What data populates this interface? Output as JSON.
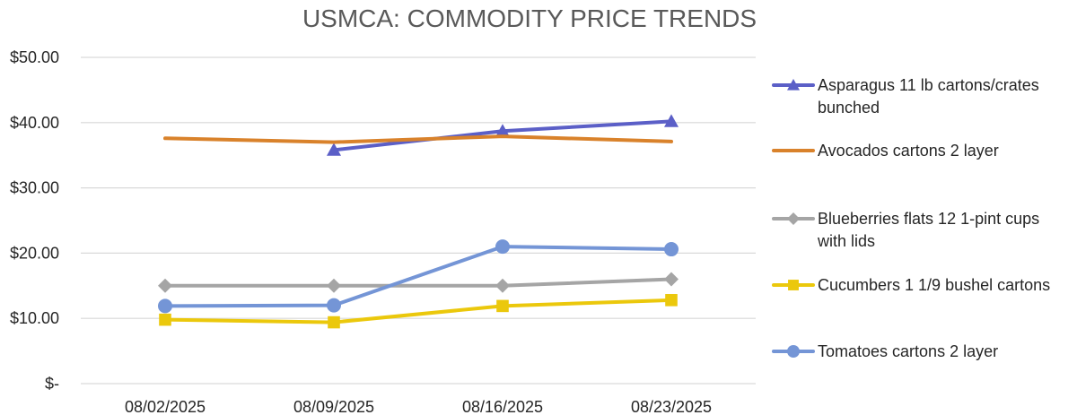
{
  "chart_data": {
    "type": "line",
    "title": "USMCA: COMMODITY PRICE TRENDS",
    "xlabel": "",
    "ylabel": "",
    "categories": [
      "08/02/2025",
      "08/09/2025",
      "08/16/2025",
      "08/23/2025"
    ],
    "ylim": [
      0,
      50
    ],
    "yticks": [
      {
        "value": 0,
        "label": "$-"
      },
      {
        "value": 10,
        "label": "$10.00"
      },
      {
        "value": 20,
        "label": "$20.00"
      },
      {
        "value": 30,
        "label": "$30.00"
      },
      {
        "value": 40,
        "label": "$40.00"
      },
      {
        "value": 50,
        "label": "$50.00"
      }
    ],
    "grid": true,
    "legend_position": "right",
    "series": [
      {
        "name": "Asparagus 11 lb cartons/crates bunched",
        "legend_lines": [
          "Asparagus 11 lb cartons/crates",
          "bunched"
        ],
        "color": "#5B5FC7",
        "marker": "triangle",
        "values": [
          null,
          35.8,
          38.7,
          40.2
        ]
      },
      {
        "name": "Avocados cartons 2 layer",
        "legend_lines": [
          "Avocados cartons 2 layer"
        ],
        "color": "#D9822B",
        "marker": "none",
        "values": [
          37.6,
          37.0,
          37.9,
          37.1
        ]
      },
      {
        "name": "Blueberries flats 12 1-pint cups with lids",
        "legend_lines": [
          "Blueberries flats 12 1-pint cups",
          "with lids"
        ],
        "color": "#A5A5A5",
        "marker": "diamond",
        "values": [
          15.0,
          15.0,
          15.0,
          16.0
        ]
      },
      {
        "name": "Cucumbers 1 1/9 bushel cartons",
        "legend_lines": [
          "Cucumbers 1 1/9 bushel cartons"
        ],
        "color": "#EBC80C",
        "marker": "square",
        "values": [
          9.8,
          9.4,
          11.9,
          12.8
        ]
      },
      {
        "name": "Tomatoes cartons 2 layer",
        "legend_lines": [
          "Tomatoes cartons 2 layer"
        ],
        "color": "#7495D6",
        "marker": "circle",
        "values": [
          11.9,
          12.0,
          21.0,
          20.6
        ]
      }
    ]
  }
}
